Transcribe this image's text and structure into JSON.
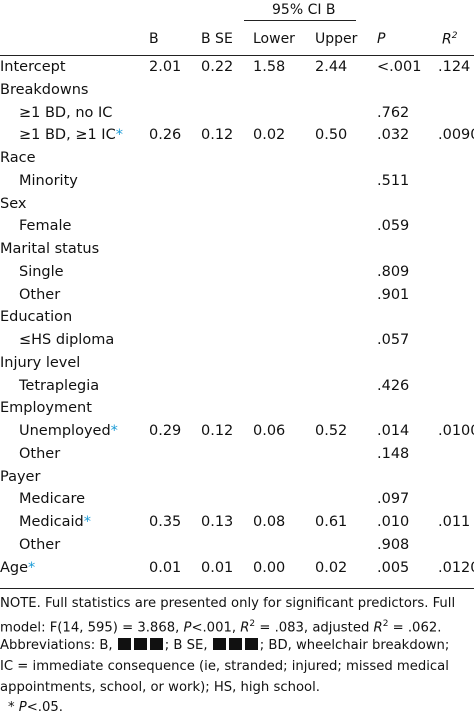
{
  "header": {
    "ci_group": "95% CI B",
    "columns": [
      "B",
      "B SE",
      "Lower",
      "Upper",
      "P",
      "R"
    ],
    "r2_superscript": "2"
  },
  "rows": [
    {
      "label": "Intercept",
      "indent": false,
      "b": "2.01",
      "bse": "0.22",
      "lower": "1.58",
      "upper": "2.44",
      "p": "<.001",
      "r2": ".124",
      "star": false
    },
    {
      "label": "Breakdowns",
      "indent": false,
      "b": "",
      "bse": "",
      "lower": "",
      "upper": "",
      "p": "",
      "r2": "",
      "star": false
    },
    {
      "label": "≥1 BD, no IC",
      "indent": true,
      "b": "",
      "bse": "",
      "lower": "",
      "upper": "",
      "p": ".762",
      "r2": "",
      "star": false
    },
    {
      "label": "≥1 BD, ≥1 IC",
      "indent": true,
      "b": "0.26",
      "bse": "0.12",
      "lower": "0.02",
      "upper": "0.50",
      "p": ".032",
      "r2": ".0090",
      "star": true
    },
    {
      "label": "Race",
      "indent": false,
      "b": "",
      "bse": "",
      "lower": "",
      "upper": "",
      "p": "",
      "r2": "",
      "star": false
    },
    {
      "label": "Minority",
      "indent": true,
      "b": "",
      "bse": "",
      "lower": "",
      "upper": "",
      "p": ".511",
      "r2": "",
      "star": false
    },
    {
      "label": "Sex",
      "indent": false,
      "b": "",
      "bse": "",
      "lower": "",
      "upper": "",
      "p": "",
      "r2": "",
      "star": false
    },
    {
      "label": "Female",
      "indent": true,
      "b": "",
      "bse": "",
      "lower": "",
      "upper": "",
      "p": ".059",
      "r2": "",
      "star": false
    },
    {
      "label": "Marital status",
      "indent": false,
      "b": "",
      "bse": "",
      "lower": "",
      "upper": "",
      "p": "",
      "r2": "",
      "star": false
    },
    {
      "label": "Single",
      "indent": true,
      "b": "",
      "bse": "",
      "lower": "",
      "upper": "",
      "p": ".809",
      "r2": "",
      "star": false
    },
    {
      "label": "Other",
      "indent": true,
      "b": "",
      "bse": "",
      "lower": "",
      "upper": "",
      "p": ".901",
      "r2": "",
      "star": false
    },
    {
      "label": "Education",
      "indent": false,
      "b": "",
      "bse": "",
      "lower": "",
      "upper": "",
      "p": "",
      "r2": "",
      "star": false
    },
    {
      "label": "≤HS diploma",
      "indent": true,
      "b": "",
      "bse": "",
      "lower": "",
      "upper": "",
      "p": ".057",
      "r2": "",
      "star": false
    },
    {
      "label": "Injury level",
      "indent": false,
      "b": "",
      "bse": "",
      "lower": "",
      "upper": "",
      "p": "",
      "r2": "",
      "star": false
    },
    {
      "label": "Tetraplegia",
      "indent": true,
      "b": "",
      "bse": "",
      "lower": "",
      "upper": "",
      "p": ".426",
      "r2": "",
      "star": false
    },
    {
      "label": "Employment",
      "indent": false,
      "b": "",
      "bse": "",
      "lower": "",
      "upper": "",
      "p": "",
      "r2": "",
      "star": false
    },
    {
      "label": "Unemployed",
      "indent": true,
      "b": "0.29",
      "bse": "0.12",
      "lower": "0.06",
      "upper": "0.52",
      "p": ".014",
      "r2": ".0100",
      "star": true
    },
    {
      "label": "Other",
      "indent": true,
      "b": "",
      "bse": "",
      "lower": "",
      "upper": "",
      "p": ".148",
      "r2": "",
      "star": false
    },
    {
      "label": "Payer",
      "indent": false,
      "b": "",
      "bse": "",
      "lower": "",
      "upper": "",
      "p": "",
      "r2": "",
      "star": false
    },
    {
      "label": "Medicare",
      "indent": true,
      "b": "",
      "bse": "",
      "lower": "",
      "upper": "",
      "p": ".097",
      "r2": "",
      "star": false
    },
    {
      "label": "Medicaid",
      "indent": true,
      "b": "0.35",
      "bse": "0.13",
      "lower": "0.08",
      "upper": "0.61",
      "p": ".010",
      "r2": ".011",
      "star": true
    },
    {
      "label": "Other",
      "indent": true,
      "b": "",
      "bse": "",
      "lower": "",
      "upper": "",
      "p": ".908",
      "r2": "",
      "star": false
    },
    {
      "label": "Age",
      "indent": false,
      "b": "0.01",
      "bse": "0.01",
      "lower": "0.00",
      "upper": "0.02",
      "p": ".005",
      "r2": ".0120",
      "star": true
    }
  ],
  "star_symbol": "*",
  "notes": {
    "line1": "NOTE. Full statistics are presented only for significant predictors. Full",
    "line2_a": "model: F(14, 595) = 3.868, ",
    "line2_p": "P",
    "line2_b": "<.001, ",
    "line2_r": "R",
    "line2_c": " = .083, adjusted ",
    "line2_d": " = .062.",
    "line3_a": "Abbreviations: B,",
    "line3_b": "; B SE,",
    "line3_c": "; BD, wheelchair breakdown;",
    "line4": "IC = immediate consequence (ie, stranded; injured; missed medical",
    "line5": "appointments, school, or work); HS, high school.",
    "footnote_star": "*",
    "footnote_p": "P",
    "footnote_rest": "<.05."
  }
}
